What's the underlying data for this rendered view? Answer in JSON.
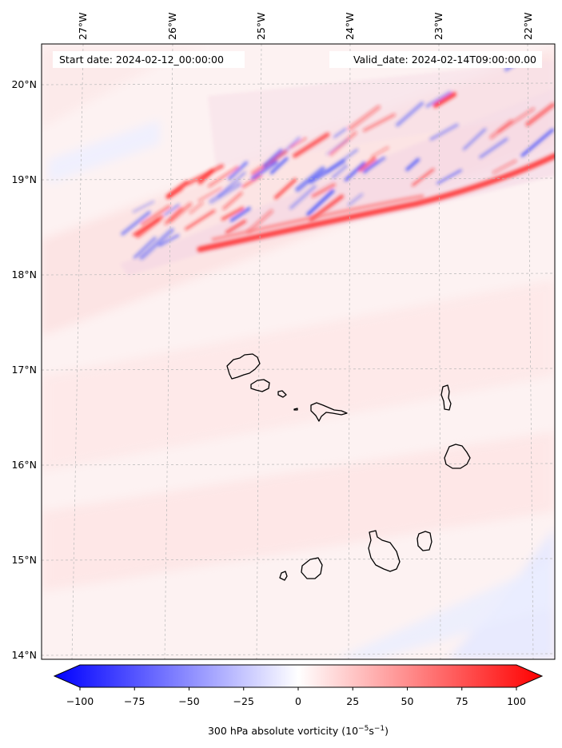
{
  "map": {
    "start_date_text": "Start date: 2024-02-12_00:00:00",
    "valid_date_text": "Valid_date: 2024-02-14T09:00:00.00",
    "longitude_labels": [
      "27°W",
      "26°W",
      "25°W",
      "24°W",
      "23°W",
      "22°W"
    ],
    "latitude_labels": [
      "20°N",
      "19°N",
      "18°N",
      "17°N",
      "16°N",
      "15°N",
      "14°N"
    ]
  },
  "colorbar": {
    "ticks": [
      "−100",
      "−75",
      "−50",
      "−25",
      "0",
      "25",
      "50",
      "75",
      "100"
    ],
    "label_prefix": "300 hPa absolute vorticity (10",
    "label_exp1": "−5",
    "label_mid": "s",
    "label_exp2": "−1",
    "label_suffix": ")",
    "colors": {
      "negative": "#0000ff",
      "zero": "#ffffff",
      "positive": "#ff0000"
    }
  },
  "islands": [
    "Santo Antão",
    "São Vicente",
    "Santa Luzia",
    "Branco",
    "São Nicolau",
    "Sal",
    "Boa Vista",
    "Santiago",
    "Maio",
    "Fogo",
    "Brava"
  ]
}
